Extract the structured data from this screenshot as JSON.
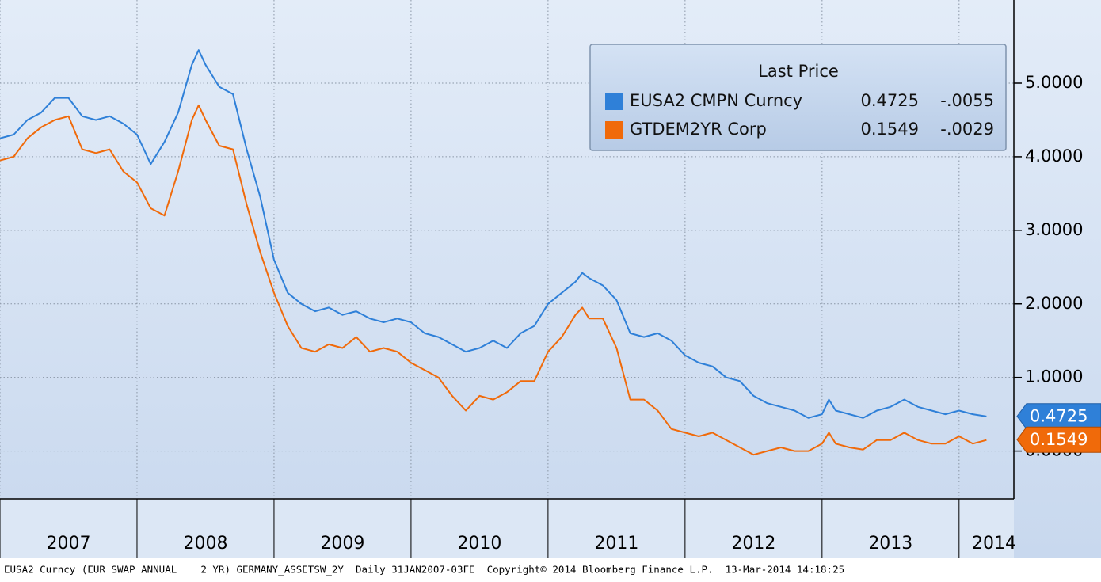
{
  "chart_data": {
    "type": "line",
    "legend": {
      "title": "Last Price",
      "position": "upper right"
    },
    "x": [
      2007.0,
      2007.1,
      2007.2,
      2007.3,
      2007.4,
      2007.5,
      2007.6,
      2007.7,
      2007.8,
      2007.9,
      2008.0,
      2008.1,
      2008.2,
      2008.3,
      2008.4,
      2008.45,
      2008.5,
      2008.6,
      2008.7,
      2008.8,
      2008.9,
      2009.0,
      2009.1,
      2009.2,
      2009.3,
      2009.4,
      2009.5,
      2009.6,
      2009.7,
      2009.8,
      2009.9,
      2010.0,
      2010.1,
      2010.2,
      2010.3,
      2010.4,
      2010.5,
      2010.6,
      2010.7,
      2010.8,
      2010.9,
      2011.0,
      2011.1,
      2011.2,
      2011.25,
      2011.3,
      2011.4,
      2011.5,
      2011.6,
      2011.7,
      2011.8,
      2011.9,
      2012.0,
      2012.1,
      2012.2,
      2012.3,
      2012.4,
      2012.5,
      2012.6,
      2012.7,
      2012.8,
      2012.9,
      2013.0,
      2013.05,
      2013.1,
      2013.2,
      2013.3,
      2013.4,
      2013.5,
      2013.6,
      2013.7,
      2013.8,
      2013.9,
      2014.0,
      2014.1,
      2014.2
    ],
    "series": [
      {
        "name": "EUSA2 CMPN Curncy",
        "color": "#2f80d8",
        "last": 0.4725,
        "change": {
          "value": -0.0055,
          "label": "-.0055"
        },
        "values": [
          4.25,
          4.3,
          4.5,
          4.6,
          4.8,
          4.8,
          4.55,
          4.5,
          4.55,
          4.45,
          4.3,
          3.9,
          4.2,
          4.6,
          5.25,
          5.45,
          5.25,
          4.95,
          4.85,
          4.1,
          3.45,
          2.6,
          2.15,
          2.0,
          1.9,
          1.95,
          1.85,
          1.9,
          1.8,
          1.75,
          1.8,
          1.75,
          1.6,
          1.55,
          1.45,
          1.35,
          1.4,
          1.5,
          1.4,
          1.6,
          1.7,
          2.0,
          2.15,
          2.3,
          2.42,
          2.35,
          2.25,
          2.05,
          1.6,
          1.55,
          1.6,
          1.5,
          1.3,
          1.2,
          1.15,
          1.0,
          0.95,
          0.75,
          0.65,
          0.6,
          0.55,
          0.45,
          0.5,
          0.7,
          0.55,
          0.5,
          0.45,
          0.55,
          0.6,
          0.7,
          0.6,
          0.55,
          0.5,
          0.55,
          0.5,
          0.47
        ]
      },
      {
        "name": "GTDEM2YR Corp",
        "color": "#f06a0a",
        "last": 0.1549,
        "change": {
          "value": -0.0029,
          "label": "-.0029"
        },
        "values": [
          3.95,
          4.0,
          4.25,
          4.4,
          4.5,
          4.55,
          4.1,
          4.05,
          4.1,
          3.8,
          3.65,
          3.3,
          3.2,
          3.8,
          4.5,
          4.7,
          4.5,
          4.15,
          4.1,
          3.35,
          2.7,
          2.15,
          1.7,
          1.4,
          1.35,
          1.45,
          1.4,
          1.55,
          1.35,
          1.4,
          1.35,
          1.2,
          1.1,
          1.0,
          0.75,
          0.55,
          0.75,
          0.7,
          0.8,
          0.95,
          0.95,
          1.35,
          1.55,
          1.85,
          1.95,
          1.8,
          1.8,
          1.4,
          0.7,
          0.7,
          0.55,
          0.3,
          0.25,
          0.2,
          0.25,
          0.15,
          0.05,
          -0.05,
          0.0,
          0.05,
          0.0,
          0.0,
          0.1,
          0.25,
          0.1,
          0.05,
          0.02,
          0.15,
          0.15,
          0.25,
          0.15,
          0.1,
          0.1,
          0.2,
          0.1,
          0.15
        ]
      }
    ],
    "xlim": [
      2007.0,
      2014.4
    ],
    "xticks": [
      2007,
      2008,
      2009,
      2010,
      2011,
      2012,
      2013,
      2014
    ],
    "ylim": [
      -0.65,
      6.13
    ],
    "yticks": [
      {
        "value": 0,
        "label": "0.0000"
      },
      {
        "value": 1,
        "label": "1.0000"
      },
      {
        "value": 2,
        "label": "2.0000"
      },
      {
        "value": 3,
        "label": "3.0000"
      },
      {
        "value": 4,
        "label": "4.0000"
      },
      {
        "value": 5,
        "label": "5.0000"
      }
    ],
    "grid": true,
    "footer": "EUSA2 Curncy (EUR SWAP ANNUAL    2 YR) GERMANY_ASSETSW_2Y  Daily 31JAN2007-03FE  Copyright© 2014 Bloomberg Finance L.P.  13-Mar-2014 14:18:25"
  }
}
